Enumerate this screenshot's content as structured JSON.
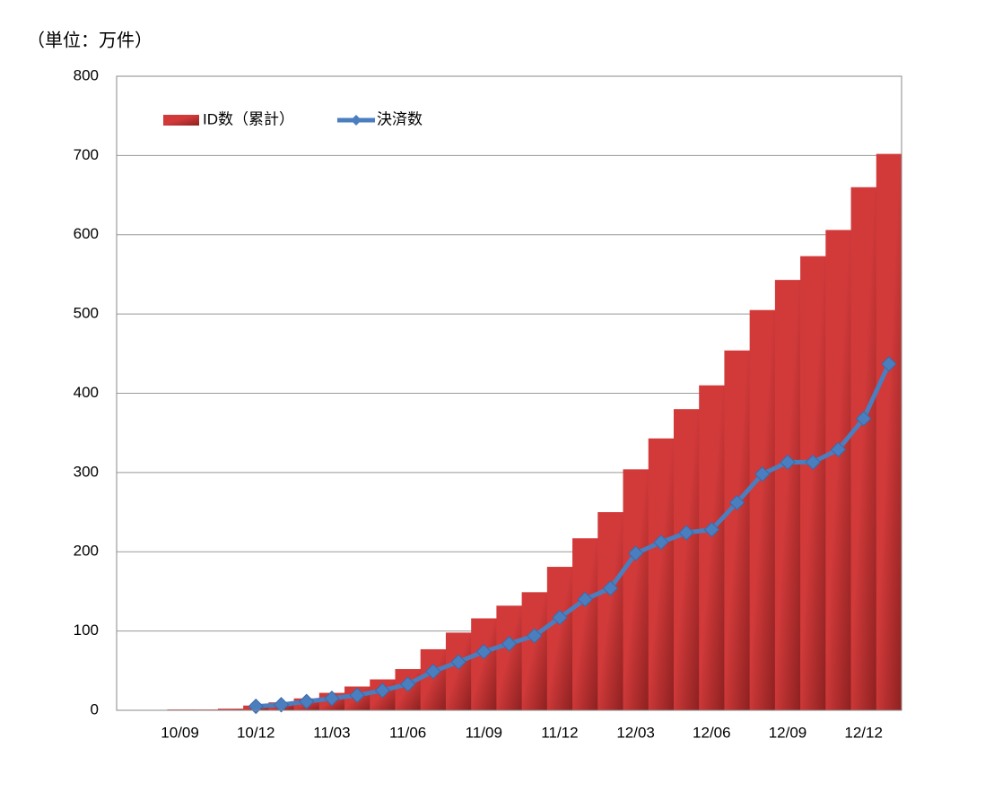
{
  "chart_data": {
    "type": "bar-line",
    "unit_label": "（単位：万件）",
    "categories": [
      null,
      null,
      "10/09",
      null,
      null,
      "10/12",
      null,
      null,
      "11/03",
      null,
      null,
      "11/06",
      null,
      null,
      "11/09",
      null,
      null,
      "11/12",
      null,
      null,
      "12/03",
      null,
      null,
      "12/06",
      null,
      null,
      "12/09",
      null,
      null,
      "12/12",
      null
    ],
    "series": [
      {
        "name": "ID数（累計）",
        "kind": "bar",
        "color": "#d23a3a",
        "values": [
          null,
          null,
          1,
          1,
          2,
          6,
          10,
          15,
          22,
          30,
          39,
          52,
          77,
          98,
          116,
          132,
          149,
          181,
          217,
          250,
          304,
          343,
          380,
          410,
          454,
          505,
          543,
          573,
          606,
          660,
          702
        ]
      },
      {
        "name": "決済数",
        "kind": "line",
        "color": "#4a7ebf",
        "values": [
          null,
          null,
          null,
          null,
          null,
          5,
          7,
          11,
          15,
          19,
          25,
          33,
          49,
          61,
          74,
          84,
          94,
          117,
          140,
          154,
          198,
          212,
          224,
          228,
          262,
          298,
          313,
          313,
          329,
          368,
          437
        ]
      }
    ],
    "ylim": [
      0,
      800
    ],
    "yticks": [
      0,
      100,
      200,
      300,
      400,
      500,
      600,
      700,
      800
    ],
    "grid": true,
    "legend": "top-left"
  }
}
